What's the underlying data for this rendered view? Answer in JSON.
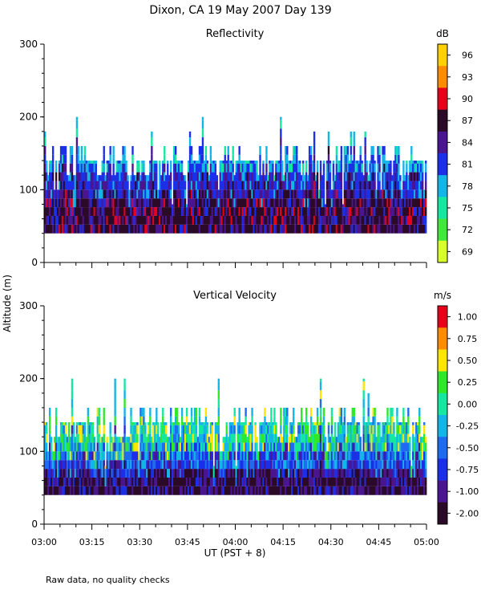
{
  "title": "Dixon, CA 19 May 2007  Day 139",
  "y_axis_label": "Altitude (m)",
  "x_axis_label": "UT  (PST + 8)",
  "footnote": "Raw data, no quality checks",
  "chart_data": [
    {
      "type": "heatmap",
      "title": "Reflectivity",
      "colorbar_unit": "dB",
      "xlim": [
        "03:00",
        "05:00"
      ],
      "x_ticks": [
        "03:00",
        "03:15",
        "03:30",
        "03:45",
        "04:00",
        "04:15",
        "04:30",
        "04:45",
        "05:00"
      ],
      "ylim": [
        0,
        300
      ],
      "y_ticks": [
        0,
        100,
        200,
        300
      ],
      "colorbar_levels": [
        {
          "label": "96",
          "color": "#ffd000"
        },
        {
          "label": "93",
          "color": "#ff8c00"
        },
        {
          "label": "90",
          "color": "#e8001a"
        },
        {
          "label": "87",
          "color": "#2a0a26"
        },
        {
          "label": "84",
          "color": "#4a1590"
        },
        {
          "label": "81",
          "color": "#1c2fe8"
        },
        {
          "label": "78",
          "color": "#12b5e8"
        },
        {
          "label": "75",
          "color": "#14e8a0"
        },
        {
          "label": "72",
          "color": "#3fe83a"
        },
        {
          "label": "69",
          "color": "#d8ff2a"
        }
      ],
      "echo_base_m": 40,
      "typical_echo_top_m": [
        120,
        160
      ],
      "max_echo_top_m": 200
    },
    {
      "type": "heatmap",
      "title": "Vertical Velocity",
      "colorbar_unit": "m/s",
      "xlim": [
        "03:00",
        "05:00"
      ],
      "x_ticks": [
        "03:00",
        "03:15",
        "03:30",
        "03:45",
        "04:00",
        "04:15",
        "04:30",
        "04:45",
        "05:00"
      ],
      "ylim": [
        0,
        300
      ],
      "y_ticks": [
        0,
        100,
        200,
        300
      ],
      "colorbar_levels": [
        {
          "label": "1.00",
          "color": "#e8001a"
        },
        {
          "label": "0.75",
          "color": "#ff8c00"
        },
        {
          "label": "0.50",
          "color": "#ffe600"
        },
        {
          "label": "0.25",
          "color": "#2fe82a"
        },
        {
          "label": "0.00",
          "color": "#14e8a0"
        },
        {
          "label": "-0.25",
          "color": "#12b5e8"
        },
        {
          "label": "-0.50",
          "color": "#1f6bf0"
        },
        {
          "label": "-0.75",
          "color": "#1c2fe8"
        },
        {
          "label": "-1.00",
          "color": "#4a1590"
        },
        {
          "label": "-2.00",
          "color": "#2a0a26"
        }
      ],
      "echo_base_m": 40,
      "typical_echo_top_m": [
        120,
        160
      ],
      "max_echo_top_m": 200
    }
  ]
}
